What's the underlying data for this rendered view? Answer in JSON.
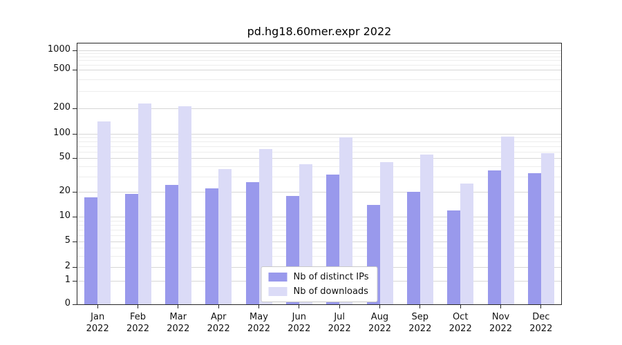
{
  "chart_data": {
    "type": "bar",
    "title": "pd.hg18.60mer.expr 2022",
    "year_label": "2022",
    "categories": [
      "Jan",
      "Feb",
      "Mar",
      "Apr",
      "May",
      "Jun",
      "Jul",
      "Aug",
      "Sep",
      "Oct",
      "Nov",
      "Dec"
    ],
    "series": [
      {
        "name": "Nb of distinct IPs",
        "color": "#9999ec",
        "values": [
          17,
          19,
          24,
          22,
          26,
          18,
          32,
          14,
          20,
          12,
          36,
          33
        ]
      },
      {
        "name": "Nb of downloads",
        "color": "#dbdbf7",
        "values": [
          140,
          225,
          210,
          37,
          65,
          42,
          90,
          45,
          55,
          25,
          92,
          57
        ]
      }
    ],
    "yticks": [
      0,
      1,
      2,
      5,
      10,
      20,
      50,
      100,
      200,
      500,
      1000
    ],
    "ylim": [
      0,
      1000
    ],
    "scale": "log",
    "grid": true,
    "legend_position": "bottom-center"
  }
}
